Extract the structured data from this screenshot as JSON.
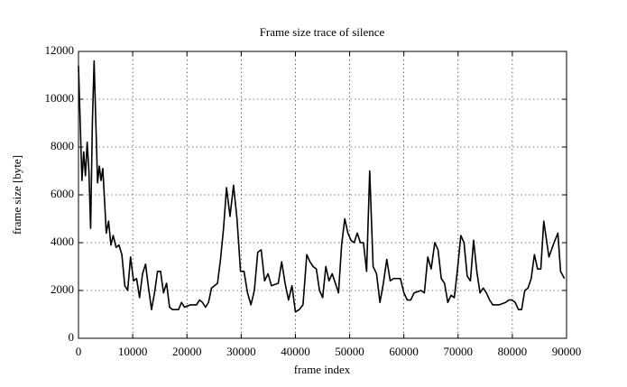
{
  "chart_data": {
    "type": "line",
    "title": "Frame size trace of silence",
    "x_label": "frame index",
    "y_label": "frame size [byte]",
    "color": "#000000",
    "grid": true,
    "xlim": [
      0,
      90000
    ],
    "xticks": [
      0,
      10000,
      20000,
      30000,
      40000,
      50000,
      60000,
      70000,
      80000,
      90000
    ],
    "ylim": [
      0,
      12000
    ],
    "yticks": [
      0,
      2000,
      4000,
      6000,
      8000,
      10000,
      12000
    ],
    "x": [
      0,
      320,
      640,
      960,
      1280,
      1600,
      1920,
      2240,
      2560,
      2880,
      3200,
      3520,
      3840,
      4160,
      4480,
      4800,
      5120,
      5550,
      5980,
      6400,
      6940,
      7470,
      8000,
      8540,
      9070,
      9600,
      10150,
      10710,
      11260,
      11810,
      12370,
      12920,
      13470,
      14020,
      14580,
      15130,
      15680,
      16240,
      16790,
      17340,
      18450,
      19000,
      19550,
      20660,
      21770,
      22320,
      22870,
      23420,
      23980,
      24530,
      25640,
      26190,
      26750,
      27300,
      27940,
      28590,
      29230,
      29880,
      30520,
      31170,
      31800,
      32430,
      33060,
      33690,
      34320,
      34950,
      35580,
      36840,
      37470,
      38100,
      38730,
      39370,
      40000,
      40700,
      41400,
      42100,
      42690,
      43270,
      43860,
      44440,
      45030,
      45610,
      46200,
      46780,
      47370,
      47950,
      48520,
      49100,
      49680,
      50250,
      50830,
      51400,
      51980,
      52550,
      53130,
      53700,
      54330,
      54960,
      55590,
      56220,
      56850,
      57480,
      58110,
      59370,
      60000,
      60630,
      61260,
      61890,
      63150,
      63780,
      64410,
      65040,
      65700,
      66300,
      66900,
      67500,
      68100,
      68700,
      69300,
      69900,
      70500,
      71090,
      71680,
      72270,
      72860,
      73450,
      74040,
      74630,
      75220,
      75810,
      76400,
      77580,
      78760,
      79350,
      79940,
      80530,
      81120,
      81710,
      82300,
      82890,
      83480,
      84070,
      84660,
      85250,
      85800,
      86750,
      87700,
      88400,
      88900,
      89600
    ],
    "values": [
      11400,
      9000,
      6600,
      7800,
      6800,
      8200,
      7000,
      4600,
      9000,
      11600,
      9000,
      6500,
      7200,
      6600,
      7100,
      5800,
      4400,
      4900,
      3900,
      4300,
      3800,
      3900,
      3500,
      2200,
      2000,
      3400,
      2400,
      2500,
      1700,
      2700,
      3100,
      2100,
      1200,
      1900,
      2800,
      2800,
      1900,
      2300,
      1300,
      1200,
      1200,
      1500,
      1300,
      1400,
      1400,
      1600,
      1500,
      1300,
      1500,
      2100,
      2300,
      3300,
      4600,
      6300,
      5100,
      6400,
      5000,
      2800,
      2800,
      1900,
      1400,
      2000,
      3600,
      3700,
      2400,
      2700,
      2200,
      2300,
      3200,
      2300,
      1600,
      2200,
      1100,
      1200,
      1400,
      3500,
      3200,
      3000,
      2900,
      2000,
      1700,
      3000,
      2400,
      2700,
      2300,
      1900,
      3900,
      5000,
      4400,
      4100,
      4000,
      4400,
      4000,
      4000,
      2800,
      7000,
      3000,
      2700,
      1500,
      2300,
      3300,
      2400,
      2500,
      2500,
      1900,
      1600,
      1600,
      1900,
      2000,
      1900,
      3400,
      2900,
      4000,
      3700,
      2500,
      2300,
      1500,
      1800,
      1700,
      2900,
      4300,
      4000,
      2600,
      2400,
      4100,
      2800,
      1900,
      2100,
      1900,
      1600,
      1400,
      1400,
      1500,
      1600,
      1600,
      1500,
      1200,
      1200,
      2000,
      2100,
      2500,
      3500,
      2900,
      2900,
      4900,
      3400,
      4000,
      4400,
      2800,
      2500
    ]
  }
}
